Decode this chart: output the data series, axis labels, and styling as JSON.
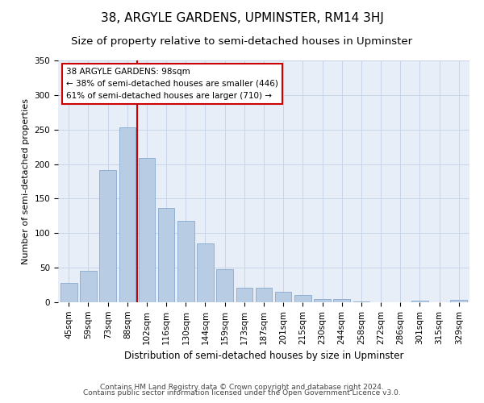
{
  "title": "38, ARGYLE GARDENS, UPMINSTER, RM14 3HJ",
  "subtitle": "Size of property relative to semi-detached houses in Upminster",
  "xlabel": "Distribution of semi-detached houses by size in Upminster",
  "ylabel": "Number of semi-detached properties",
  "categories": [
    "45sqm",
    "59sqm",
    "73sqm",
    "88sqm",
    "102sqm",
    "116sqm",
    "130sqm",
    "144sqm",
    "159sqm",
    "173sqm",
    "187sqm",
    "201sqm",
    "215sqm",
    "230sqm",
    "244sqm",
    "258sqm",
    "272sqm",
    "286sqm",
    "301sqm",
    "315sqm",
    "329sqm"
  ],
  "values": [
    28,
    46,
    191,
    253,
    209,
    137,
    118,
    85,
    48,
    21,
    21,
    15,
    10,
    5,
    5,
    1,
    0,
    0,
    2,
    0,
    4
  ],
  "bar_color": "#b8cce4",
  "bar_edge_color": "#7aa0c8",
  "grid_color": "#c8d4e8",
  "background_color": "#e8eef8",
  "property_line_color": "#cc0000",
  "annotation_title": "38 ARGYLE GARDENS: 98sqm",
  "annotation_line1": "← 38% of semi-detached houses are smaller (446)",
  "annotation_line2": "61% of semi-detached houses are larger (710) →",
  "annotation_box_facecolor": "#ffffff",
  "annotation_box_edgecolor": "#cc0000",
  "footer_line1": "Contains HM Land Registry data © Crown copyright and database right 2024.",
  "footer_line2": "Contains public sector information licensed under the Open Government Licence v3.0.",
  "ylim": [
    0,
    350
  ],
  "yticks": [
    0,
    50,
    100,
    150,
    200,
    250,
    300,
    350
  ],
  "title_fontsize": 11,
  "subtitle_fontsize": 9.5,
  "xlabel_fontsize": 8.5,
  "ylabel_fontsize": 8,
  "tick_fontsize": 7.5,
  "annotation_fontsize": 7.5,
  "footer_fontsize": 6.5
}
